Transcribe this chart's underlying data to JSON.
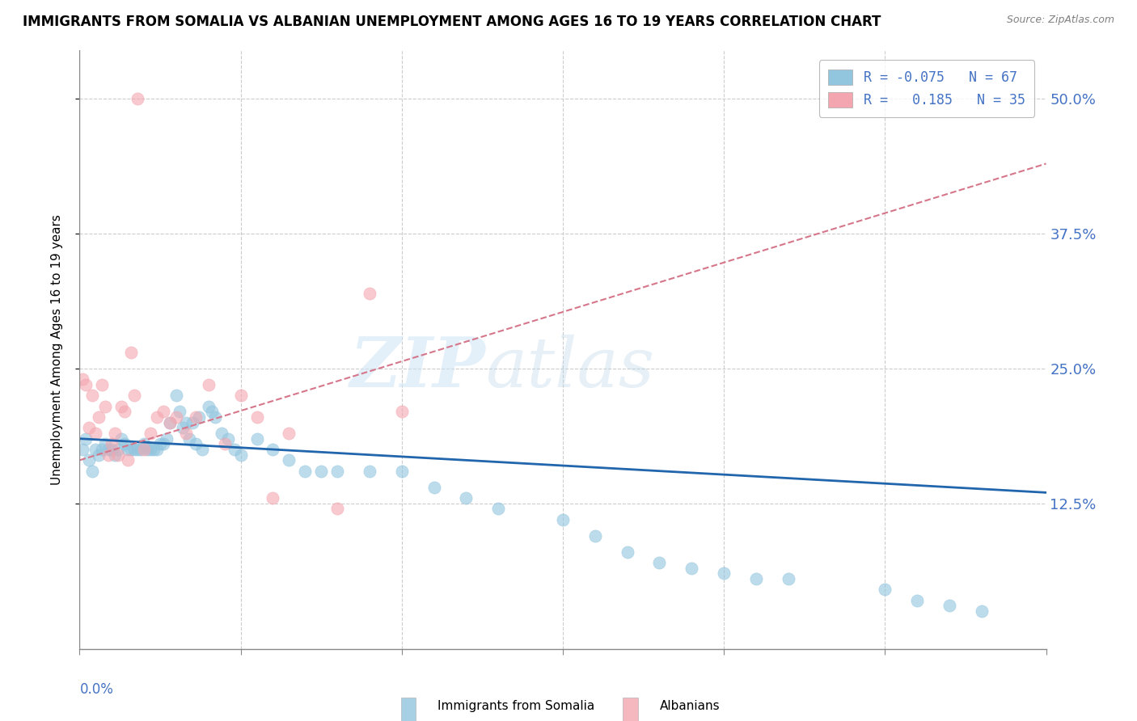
{
  "title": "IMMIGRANTS FROM SOMALIA VS ALBANIAN UNEMPLOYMENT AMONG AGES 16 TO 19 YEARS CORRELATION CHART",
  "source": "Source: ZipAtlas.com",
  "ylabel": "Unemployment Among Ages 16 to 19 years",
  "ytick_labels": [
    "50.0%",
    "37.5%",
    "25.0%",
    "12.5%"
  ],
  "ytick_values": [
    0.5,
    0.375,
    0.25,
    0.125
  ],
  "xrange": [
    0.0,
    0.3
  ],
  "yrange": [
    -0.01,
    0.545
  ],
  "somalia_color": "#92c5de",
  "albania_color": "#f4a6b0",
  "somalia_trend_color": "#2166ac",
  "albania_trend_color": "#d6768a",
  "axis_label_color": "#4472c4",
  "somalia_scatter_x": [
    0.001,
    0.002,
    0.003,
    0.004,
    0.005,
    0.006,
    0.007,
    0.008,
    0.009,
    0.01,
    0.011,
    0.012,
    0.013,
    0.014,
    0.015,
    0.016,
    0.017,
    0.018,
    0.019,
    0.02,
    0.021,
    0.022,
    0.023,
    0.024,
    0.025,
    0.026,
    0.027,
    0.028,
    0.03,
    0.031,
    0.032,
    0.033,
    0.034,
    0.035,
    0.036,
    0.037,
    0.038,
    0.04,
    0.041,
    0.042,
    0.044,
    0.046,
    0.048,
    0.05,
    0.055,
    0.06,
    0.065,
    0.07,
    0.075,
    0.08,
    0.09,
    0.1,
    0.11,
    0.12,
    0.13,
    0.15,
    0.16,
    0.17,
    0.18,
    0.19,
    0.2,
    0.21,
    0.22,
    0.25,
    0.26,
    0.27,
    0.28
  ],
  "somalia_scatter_y": [
    0.175,
    0.185,
    0.165,
    0.155,
    0.175,
    0.17,
    0.175,
    0.18,
    0.175,
    0.175,
    0.17,
    0.175,
    0.185,
    0.18,
    0.175,
    0.175,
    0.175,
    0.175,
    0.175,
    0.18,
    0.175,
    0.175,
    0.175,
    0.175,
    0.18,
    0.18,
    0.185,
    0.2,
    0.225,
    0.21,
    0.195,
    0.2,
    0.185,
    0.2,
    0.18,
    0.205,
    0.175,
    0.215,
    0.21,
    0.205,
    0.19,
    0.185,
    0.175,
    0.17,
    0.185,
    0.175,
    0.165,
    0.155,
    0.155,
    0.155,
    0.155,
    0.155,
    0.14,
    0.13,
    0.12,
    0.11,
    0.095,
    0.08,
    0.07,
    0.065,
    0.06,
    0.055,
    0.055,
    0.045,
    0.035,
    0.03,
    0.025
  ],
  "albania_scatter_x": [
    0.001,
    0.002,
    0.003,
    0.004,
    0.005,
    0.006,
    0.007,
    0.008,
    0.009,
    0.01,
    0.011,
    0.012,
    0.013,
    0.014,
    0.015,
    0.016,
    0.017,
    0.018,
    0.02,
    0.022,
    0.024,
    0.026,
    0.028,
    0.03,
    0.033,
    0.036,
    0.04,
    0.045,
    0.05,
    0.055,
    0.06,
    0.065,
    0.08,
    0.09,
    0.1
  ],
  "albania_scatter_y": [
    0.24,
    0.235,
    0.195,
    0.225,
    0.19,
    0.205,
    0.235,
    0.215,
    0.17,
    0.18,
    0.19,
    0.17,
    0.215,
    0.21,
    0.165,
    0.265,
    0.225,
    0.5,
    0.175,
    0.19,
    0.205,
    0.21,
    0.2,
    0.205,
    0.19,
    0.205,
    0.235,
    0.18,
    0.225,
    0.205,
    0.13,
    0.19,
    0.12,
    0.32,
    0.21
  ],
  "somalia_trend_x": [
    0.0,
    0.3
  ],
  "somalia_trend_y": [
    0.185,
    0.135
  ],
  "albania_trend_x": [
    0.0,
    0.3
  ],
  "albania_trend_y": [
    0.165,
    0.44
  ],
  "legend_somalia_label": "R = -0.075   N = 67",
  "legend_albania_label": "R =   0.185   N = 35",
  "bottom_legend_somalia": "Immigrants from Somalia",
  "bottom_legend_albania": "Albanians"
}
